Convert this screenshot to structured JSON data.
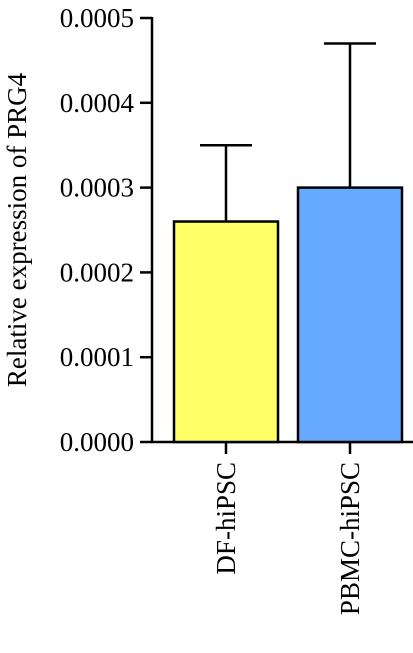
{
  "chart_data": {
    "type": "bar",
    "title": "",
    "xlabel": "",
    "ylabel": "Relative expression of PRG4",
    "ylim": [
      0,
      0.0005
    ],
    "yticks": [
      "0.0000",
      "0.0001",
      "0.0002",
      "0.0003",
      "0.0004",
      "0.0005"
    ],
    "ytick_values": [
      0,
      0.0001,
      0.0002,
      0.0003,
      0.0004,
      0.0005
    ],
    "categories": [
      "DF-hiPSC",
      "PBMC-hiPSC"
    ],
    "values": [
      0.00026,
      0.0003
    ],
    "error_upper": [
      0.00035,
      0.00047
    ],
    "colors": [
      "#ffff66",
      "#66aaff"
    ],
    "grid": false,
    "legend": "none"
  }
}
